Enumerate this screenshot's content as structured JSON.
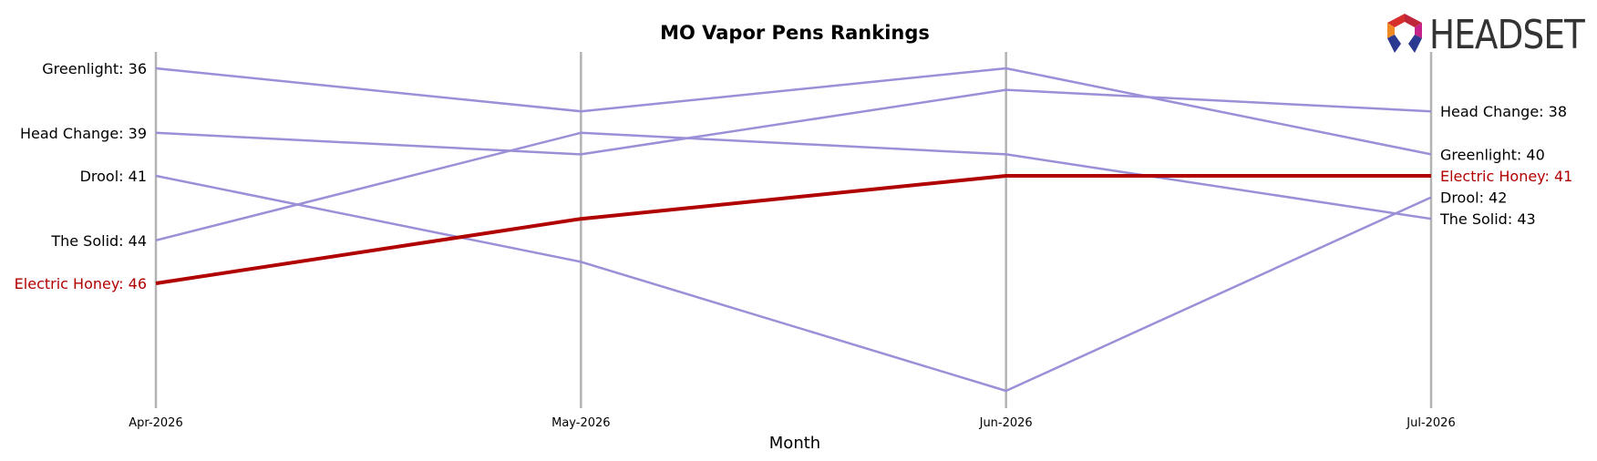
{
  "chart_data": {
    "type": "line",
    "title": "MO Vapor Pens Rankings",
    "xlabel": "Month",
    "ylabel": "",
    "categories": [
      "Apr-2026",
      "May-2026",
      "Jun-2026",
      "Jul-2026"
    ],
    "y_inverted": true,
    "ylim": [
      34,
      52
    ],
    "grid": "vertical lines at each month",
    "series": [
      {
        "name": "Greenlight",
        "values": [
          36,
          38,
          36,
          40
        ],
        "color": "#9b8fd8",
        "highlight": false
      },
      {
        "name": "Head Change",
        "values": [
          39,
          40,
          37,
          38
        ],
        "color": "#9b8fd8",
        "highlight": false
      },
      {
        "name": "Drool",
        "values": [
          41,
          45,
          51,
          42
        ],
        "color": "#9b8fd8",
        "highlight": false
      },
      {
        "name": "The Solid",
        "values": [
          44,
          39,
          40,
          43
        ],
        "color": "#9b8fd8",
        "highlight": false
      },
      {
        "name": "Electric Honey",
        "values": [
          46,
          43,
          41,
          41
        ],
        "color": "#b00000",
        "highlight": true
      }
    ]
  },
  "logo": {
    "text": "HEADSET",
    "icon": "headset-hexagon-logo-icon"
  },
  "colors": {
    "highlight": "#b00000",
    "muted": "#9b8fd8",
    "gridline": "#b3b3b3",
    "label_default": "#000000"
  }
}
